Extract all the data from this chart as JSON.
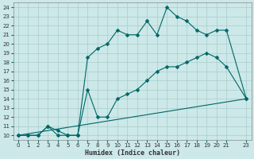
{
  "title": "",
  "xlabel": "Humidex (Indice chaleur)",
  "background_color": "#cce8e8",
  "grid_color": "#aacccc",
  "line_color": "#006666",
  "xlim": [
    -0.5,
    23.5
  ],
  "ylim": [
    9.5,
    24.5
  ],
  "xticks": [
    0,
    1,
    2,
    3,
    4,
    5,
    6,
    7,
    8,
    9,
    10,
    11,
    12,
    13,
    14,
    15,
    16,
    17,
    18,
    19,
    20,
    21,
    23
  ],
  "yticks": [
    10,
    11,
    12,
    13,
    14,
    15,
    16,
    17,
    18,
    19,
    20,
    21,
    22,
    23,
    24
  ],
  "line1_x": [
    0,
    1,
    2,
    3,
    4,
    5,
    6,
    7,
    8,
    9,
    10,
    11,
    12,
    13,
    14,
    15,
    16,
    17,
    18,
    19,
    20,
    21,
    23
  ],
  "line1_y": [
    10,
    10,
    10,
    11,
    10,
    10,
    10,
    18.5,
    19.5,
    20,
    21.5,
    21,
    21,
    22.5,
    21,
    24,
    23,
    22.5,
    21.5,
    21,
    21.5,
    21.5,
    14
  ],
  "line2_x": [
    0,
    1,
    2,
    3,
    4,
    5,
    6,
    7,
    8,
    9,
    10,
    11,
    12,
    13,
    14,
    15,
    16,
    17,
    18,
    19,
    20,
    21,
    23
  ],
  "line2_y": [
    10,
    10,
    10,
    11,
    10.5,
    10,
    10,
    15,
    12,
    12,
    14,
    14.5,
    15,
    16,
    17,
    17.5,
    17.5,
    18,
    18.5,
    19,
    18.5,
    17.5,
    14
  ],
  "line3_x": [
    0,
    23
  ],
  "line3_y": [
    10,
    14
  ]
}
